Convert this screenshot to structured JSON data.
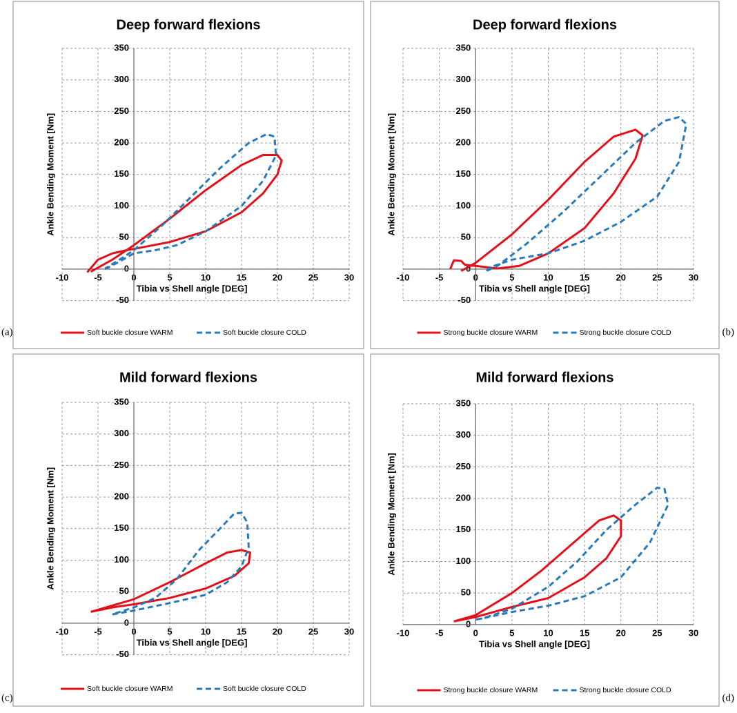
{
  "chart_data": [
    {
      "type": "line",
      "panel_label": "(a)",
      "title": "Deep forward flexions",
      "xlabel": "Tibia vs Shell angle [DEG]",
      "ylabel": "Ankle Bending Moment [Nm]",
      "xlim": [
        -10,
        30
      ],
      "ylim": [
        -50,
        350
      ],
      "xticks": [
        -10,
        -5,
        0,
        5,
        10,
        15,
        20,
        25,
        30
      ],
      "yticks": [
        -50,
        0,
        50,
        100,
        150,
        200,
        250,
        300,
        350
      ],
      "grid": true,
      "series": [
        {
          "name": "Soft buckle closure WARM",
          "color": "#e3101a",
          "linestyle": "solid",
          "x": [
            -6.5,
            -5,
            -3,
            -1,
            0,
            5,
            10,
            15,
            18,
            20,
            20.6,
            20,
            18,
            15,
            10,
            5,
            0,
            -3,
            -6
          ],
          "values": [
            -5,
            15,
            25,
            30,
            32,
            43,
            60,
            90,
            120,
            150,
            172,
            181,
            181,
            165,
            125,
            80,
            38,
            15,
            -4
          ]
        },
        {
          "name": "Soft buckle closure COLD",
          "color": "#2a7ab8",
          "linestyle": "dashed",
          "x": [
            -4,
            -2,
            0,
            3,
            6,
            10,
            15,
            18,
            19.8,
            19.6,
            18.5,
            16,
            12,
            8,
            4,
            0,
            -2,
            -4
          ],
          "values": [
            0,
            12,
            25,
            30,
            38,
            60,
            100,
            140,
            180,
            210,
            214,
            200,
            160,
            115,
            70,
            30,
            15,
            1
          ]
        }
      ]
    },
    {
      "type": "line",
      "panel_label": "(b)",
      "title": "Deep forward flexions",
      "xlabel": "Tibia vs Shell angle [DEG]",
      "ylabel": "Ankle Bending Moment [Nm]",
      "xlim": [
        -10,
        30
      ],
      "ylim": [
        -50,
        350
      ],
      "xticks": [
        -10,
        -5,
        0,
        5,
        10,
        15,
        20,
        25,
        30
      ],
      "yticks": [
        -50,
        0,
        50,
        100,
        150,
        200,
        250,
        300,
        350
      ],
      "grid": true,
      "series": [
        {
          "name": "Strong buckle closure WARM",
          "color": "#e3101a",
          "linestyle": "solid",
          "x": [
            -3.5,
            -3,
            -2,
            -1.5,
            0,
            3,
            6,
            10,
            15,
            19,
            22,
            23,
            22,
            19,
            15,
            10,
            5,
            0,
            -2
          ],
          "values": [
            0,
            14,
            13,
            7,
            5,
            1,
            5,
            25,
            65,
            120,
            175,
            212,
            221,
            210,
            170,
            110,
            55,
            10,
            -3
          ]
        },
        {
          "name": "Strong buckle closure COLD",
          "color": "#2a7ab8",
          "linestyle": "dashed",
          "x": [
            1.5,
            2,
            5,
            10,
            15,
            20,
            25,
            28,
            29,
            28,
            26,
            22,
            17,
            12,
            7,
            3,
            1.5
          ],
          "values": [
            -3,
            3,
            15,
            25,
            45,
            75,
            115,
            170,
            230,
            241,
            235,
            200,
            145,
            90,
            40,
            5,
            -3
          ]
        }
      ]
    },
    {
      "type": "line",
      "panel_label": "(c)",
      "title": "Mild forward flexions",
      "xlabel": "Tibia vs Shell angle [DEG]",
      "ylabel": "Ankle Bending Moment [Nm]",
      "xlim": [
        -10,
        30
      ],
      "ylim": [
        -50,
        350
      ],
      "xticks": [
        -10,
        -5,
        0,
        5,
        10,
        15,
        20,
        25,
        30
      ],
      "yticks": [
        -50,
        0,
        50,
        100,
        150,
        200,
        250,
        300,
        350
      ],
      "grid": true,
      "series": [
        {
          "name": "Soft buckle closure WARM",
          "color": "#e3101a",
          "linestyle": "solid",
          "x": [
            -6,
            -3,
            0,
            5,
            10,
            14,
            16,
            16.2,
            15,
            13,
            10,
            5,
            0,
            -3,
            -6
          ],
          "values": [
            18,
            25,
            30,
            40,
            55,
            75,
            95,
            112,
            116,
            112,
            95,
            65,
            38,
            28,
            18
          ]
        },
        {
          "name": "Soft buckle closure COLD",
          "color": "#2a7ab8",
          "linestyle": "dashed",
          "x": [
            -3,
            0,
            5,
            10,
            13,
            15,
            16,
            15.8,
            15,
            14,
            12,
            9,
            6,
            3,
            0,
            -3
          ],
          "values": [
            14,
            20,
            32,
            45,
            65,
            90,
            120,
            160,
            175,
            174,
            150,
            115,
            70,
            40,
            25,
            14
          ]
        }
      ]
    },
    {
      "type": "line",
      "panel_label": "(d)",
      "title": "Mild forward flexions",
      "xlabel": "Tibia vs Shell angle [DEG]",
      "ylabel": "Ankle Bending Moment [Nm]",
      "xlim": [
        -10,
        30
      ],
      "ylim": [
        0,
        350
      ],
      "xticks": [
        -10,
        -5,
        0,
        5,
        10,
        15,
        20,
        25,
        30
      ],
      "yticks": [
        0,
        50,
        100,
        150,
        200,
        250,
        300,
        350
      ],
      "grid": true,
      "series": [
        {
          "name": "Strong buckle closure WARM",
          "color": "#e3101a",
          "linestyle": "solid",
          "x": [
            -3,
            0,
            5,
            10,
            15,
            18,
            20,
            20,
            19,
            17,
            13,
            9,
            5,
            0,
            -3
          ],
          "values": [
            5,
            12,
            28,
            42,
            75,
            105,
            140,
            165,
            173,
            165,
            125,
            85,
            50,
            15,
            5
          ]
        },
        {
          "name": "Strong buckle closure COLD",
          "color": "#2a7ab8",
          "linestyle": "dashed",
          "x": [
            0,
            1,
            5,
            10,
            15,
            20,
            24,
            26.5,
            26,
            25,
            22,
            18,
            14,
            10,
            5,
            1,
            0
          ],
          "values": [
            8,
            10,
            20,
            30,
            45,
            75,
            130,
            190,
            215,
            217,
            190,
            150,
            100,
            60,
            25,
            10,
            8
          ]
        }
      ]
    }
  ]
}
